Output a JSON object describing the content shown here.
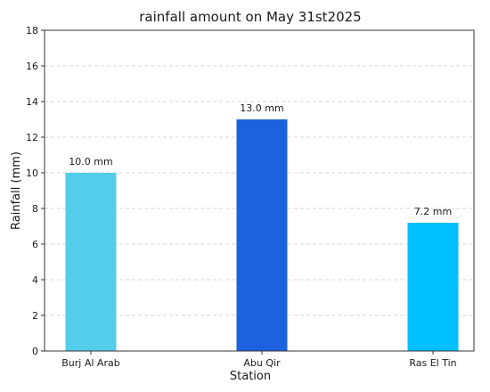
{
  "chart_data": {
    "type": "bar",
    "title": "rainfall amount on May 31st2025",
    "xlabel": "Station",
    "ylabel": "Rainfall (mm)",
    "categories": [
      "Burj Al Arab",
      "Abu Qir",
      "Ras El Tin"
    ],
    "values": [
      10.0,
      13.0,
      7.2
    ],
    "value_labels": [
      "10.0 mm",
      "13.0 mm",
      "7.2 mm"
    ],
    "colors": [
      "#54cdeb",
      "#1e61de",
      "#00bfff"
    ],
    "ylim": [
      0,
      18
    ],
    "yticks": [
      0,
      2,
      4,
      6,
      8,
      10,
      12,
      14,
      16,
      18
    ],
    "grid": "horizontal-dashed",
    "legend": "none"
  }
}
